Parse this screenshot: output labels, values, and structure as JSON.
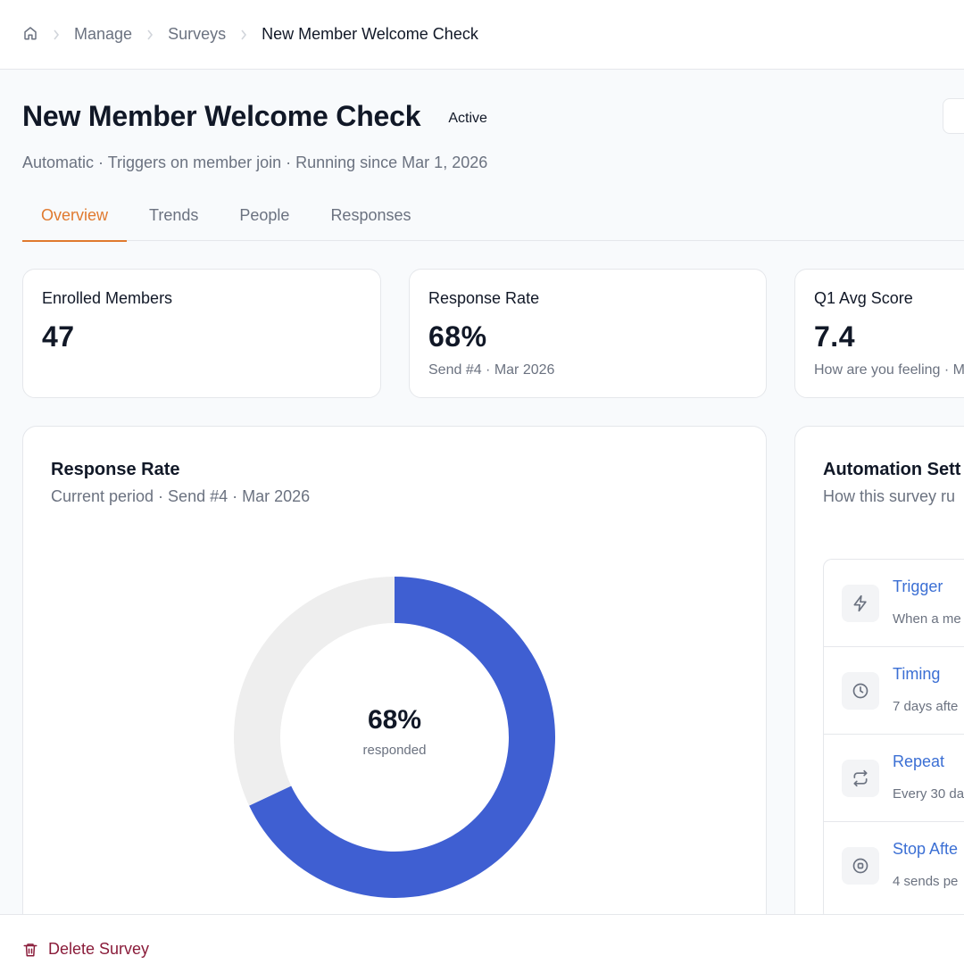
{
  "breadcrumb": {
    "home_icon": "home-icon",
    "items": [
      "Manage",
      "Surveys"
    ],
    "current": "New Member Welcome Check"
  },
  "header": {
    "title": "New Member Welcome Check",
    "status": "Active",
    "subtitle": "Automatic · Triggers on member join · Running since Mar 1, 2026"
  },
  "tabs": [
    {
      "label": "Overview",
      "active": true
    },
    {
      "label": "Trends",
      "active": false
    },
    {
      "label": "People",
      "active": false
    },
    {
      "label": "Responses",
      "active": false
    }
  ],
  "stats": [
    {
      "label": "Enrolled Members",
      "value": "47",
      "sub": ""
    },
    {
      "label": "Response Rate",
      "value": "68%",
      "sub": "Send #4 · Mar 2026"
    },
    {
      "label": "Q1 Avg Score",
      "value": "7.4",
      "sub": "How are you feeling · M"
    }
  ],
  "response_panel": {
    "title": "Response Rate",
    "subtitle": "Current period · Send #4 · Mar 2026",
    "center_value": "68%",
    "center_label": "responded"
  },
  "chart_data": {
    "type": "pie",
    "categories": [
      "responded",
      "not responded"
    ],
    "values": [
      68,
      32
    ],
    "colors": [
      "#3f5fd2",
      "#eeeeee"
    ],
    "title": "Response Rate"
  },
  "automation_panel": {
    "title": "Automation Sett",
    "subtitle": "How this survey ru",
    "settings": [
      {
        "title": "Trigger",
        "desc": "When a me",
        "icon": "lightning-icon"
      },
      {
        "title": "Timing",
        "desc": "7 days afte",
        "icon": "clock-icon"
      },
      {
        "title": "Repeat",
        "desc": "Every 30 da",
        "icon": "repeat-icon"
      },
      {
        "title": "Stop Afte",
        "desc": "4 sends pe",
        "icon": "stop-circle-icon"
      }
    ]
  },
  "footer": {
    "delete_label": "Delete Survey",
    "delete_icon": "trash-icon"
  },
  "colors": {
    "accent": "#e07a2f",
    "donut": "#3f5fd2",
    "link": "#3b6fd4",
    "danger": "#8a1c3a"
  }
}
